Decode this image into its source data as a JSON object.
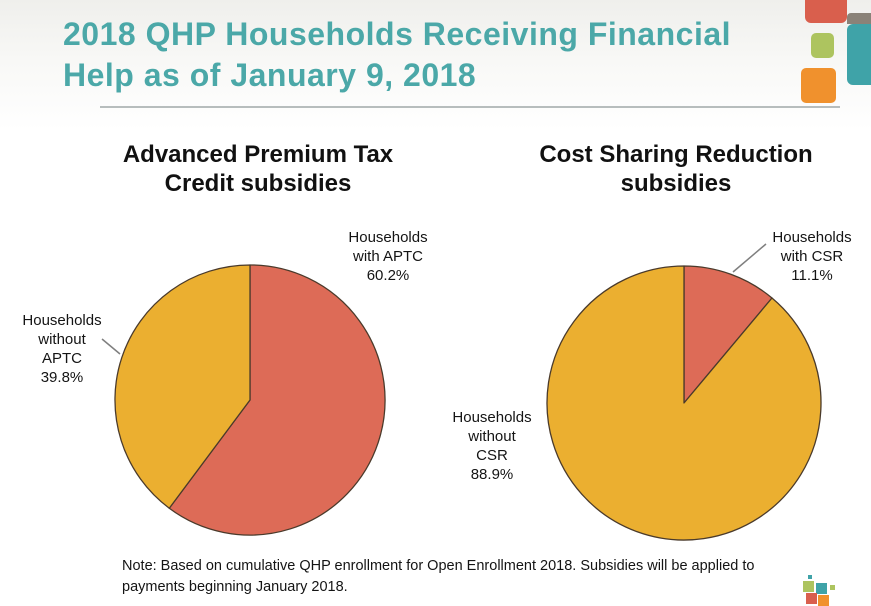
{
  "slide": {
    "title": "2018 QHP Households Receiving Financial\nHelp as of January 9, 2018",
    "note": "Note:  Based on cumulative QHP enrollment for Open Enrollment 2018. Subsidies will be applied to\npayments beginning January 2018."
  },
  "colors": {
    "title_teal": "#4BA8A8",
    "pie_red": "#DD6B57",
    "pie_yellow": "#EBAF30",
    "pie_outline": "#4a3a2b",
    "leader_gray": "#7f7f7f",
    "deco_red": "#D95F4D",
    "deco_gray": "#8A8278",
    "deco_teal": "#3FA3A8",
    "deco_green": "#ADC45F",
    "deco_orange": "#F0912D"
  },
  "chart_data": [
    {
      "type": "pie",
      "title": "Advanced Premium Tax\nCredit subsidies",
      "start_angle_deg": 0,
      "direction": "clockwise",
      "slices": [
        {
          "label": "Households with APTC",
          "value": 60.2,
          "color": "#DD6B57"
        },
        {
          "label": "Households without APTC",
          "value": 39.8,
          "color": "#EBAF30"
        }
      ],
      "callouts": [
        {
          "name": "with-aptc",
          "text": "Households\nwith APTC\n60.2%"
        },
        {
          "name": "without-aptc",
          "text": "Households\nwithout\nAPTC\n39.8%"
        }
      ]
    },
    {
      "type": "pie",
      "title": "Cost Sharing Reduction\nsubsidies",
      "start_angle_deg": 0,
      "direction": "clockwise",
      "slices": [
        {
          "label": "Households with CSR",
          "value": 11.1,
          "color": "#DD6B57"
        },
        {
          "label": "Households without CSR",
          "value": 88.9,
          "color": "#EBAF30"
        }
      ],
      "callouts": [
        {
          "name": "with-csr",
          "text": "Households\nwith CSR\n11.1%"
        },
        {
          "name": "without-csr",
          "text": "Households\nwithout\nCSR\n88.9%"
        }
      ]
    }
  ]
}
